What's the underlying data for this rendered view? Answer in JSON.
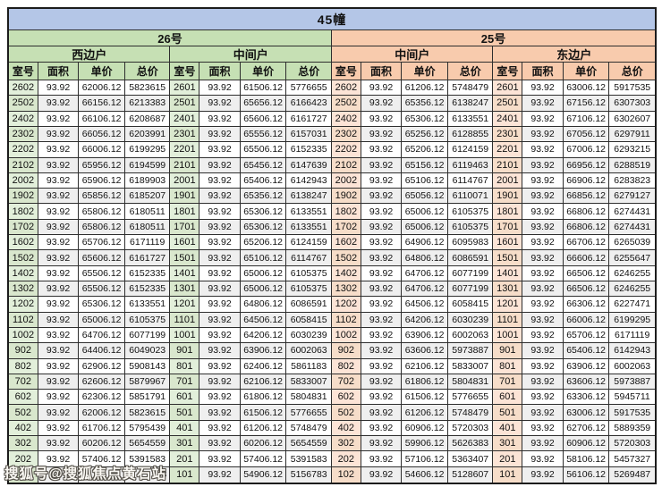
{
  "page": {
    "title": "45幢",
    "watermark": "搜狐号@搜狐焦点黄石站"
  },
  "colors": {
    "header_bar": "#b4c6e7",
    "group_26": "#c6e0b4",
    "group_25": "#f8cbad",
    "room_26": "#e2efda",
    "room_25": "#fce4d6",
    "row_alt": "#efefef",
    "border": "#2e2e2e"
  },
  "columns": [
    "室号",
    "面积",
    "单价",
    "总价"
  ],
  "buildings": [
    {
      "label": "26号",
      "theme": "green"
    },
    {
      "label": "25号",
      "theme": "orange"
    }
  ],
  "groups": [
    {
      "building": "26号",
      "unit": "西边户",
      "theme": "green",
      "rows": [
        [
          "2602",
          "93.92",
          "62006.12",
          "5823615"
        ],
        [
          "2502",
          "93.92",
          "66156.12",
          "6213383"
        ],
        [
          "2402",
          "93.92",
          "66106.12",
          "6208687"
        ],
        [
          "2302",
          "93.92",
          "66056.12",
          "6203991"
        ],
        [
          "2202",
          "93.92",
          "66006.12",
          "6199295"
        ],
        [
          "2102",
          "93.92",
          "65956.12",
          "6194599"
        ],
        [
          "2002",
          "93.92",
          "65906.12",
          "6189903"
        ],
        [
          "1902",
          "93.92",
          "65856.12",
          "6185207"
        ],
        [
          "1802",
          "93.92",
          "65806.12",
          "6180511"
        ],
        [
          "1702",
          "93.92",
          "65806.12",
          "6180511"
        ],
        [
          "1602",
          "93.92",
          "65706.12",
          "6171119"
        ],
        [
          "1502",
          "93.92",
          "65606.12",
          "6161727"
        ],
        [
          "1402",
          "93.92",
          "65506.12",
          "6152335"
        ],
        [
          "1302",
          "93.92",
          "65506.12",
          "6152335"
        ],
        [
          "1202",
          "93.92",
          "65306.12",
          "6133551"
        ],
        [
          "1102",
          "93.92",
          "65006.12",
          "6105375"
        ],
        [
          "1002",
          "93.92",
          "64706.12",
          "6077199"
        ],
        [
          "902",
          "93.92",
          "64406.12",
          "6049023"
        ],
        [
          "802",
          "93.92",
          "62906.12",
          "5908143"
        ],
        [
          "702",
          "93.92",
          "62606.12",
          "5879967"
        ],
        [
          "602",
          "93.92",
          "62306.12",
          "5851791"
        ],
        [
          "502",
          "93.92",
          "62006.12",
          "5823615"
        ],
        [
          "402",
          "93.92",
          "61706.12",
          "5795439"
        ],
        [
          "302",
          "93.92",
          "60206.12",
          "5654559"
        ],
        [
          "202",
          "93.92",
          "57406.12",
          "5391583"
        ],
        [
          "",
          "",
          "",
          "743"
        ]
      ]
    },
    {
      "building": "26号",
      "unit": "中间户",
      "theme": "green",
      "rows": [
        [
          "2601",
          "93.92",
          "61506.12",
          "5776655"
        ],
        [
          "2501",
          "93.92",
          "65656.12",
          "6166423"
        ],
        [
          "2401",
          "93.92",
          "65606.12",
          "6161727"
        ],
        [
          "2301",
          "93.92",
          "65556.12",
          "6157031"
        ],
        [
          "2201",
          "93.92",
          "65506.12",
          "6152335"
        ],
        [
          "2101",
          "93.92",
          "65456.12",
          "6147639"
        ],
        [
          "2001",
          "93.92",
          "65406.12",
          "6142943"
        ],
        [
          "1901",
          "93.92",
          "65356.12",
          "6138247"
        ],
        [
          "1801",
          "93.92",
          "65306.12",
          "6133551"
        ],
        [
          "1701",
          "93.92",
          "65306.12",
          "6133551"
        ],
        [
          "1601",
          "93.92",
          "65206.12",
          "6124159"
        ],
        [
          "1501",
          "93.92",
          "65106.12",
          "6114767"
        ],
        [
          "1401",
          "93.92",
          "65006.12",
          "6105375"
        ],
        [
          "1301",
          "93.92",
          "65006.12",
          "6105375"
        ],
        [
          "1201",
          "93.92",
          "64806.12",
          "6086591"
        ],
        [
          "1101",
          "93.92",
          "64506.12",
          "6058415"
        ],
        [
          "1001",
          "93.92",
          "64206.12",
          "6030239"
        ],
        [
          "901",
          "93.92",
          "63906.12",
          "6002063"
        ],
        [
          "801",
          "93.92",
          "62406.12",
          "5861183"
        ],
        [
          "701",
          "93.92",
          "62106.12",
          "5833007"
        ],
        [
          "601",
          "93.92",
          "61806.12",
          "5804831"
        ],
        [
          "501",
          "93.92",
          "61506.12",
          "5776655"
        ],
        [
          "401",
          "93.92",
          "61206.12",
          "5748479"
        ],
        [
          "301",
          "93.92",
          "60206.12",
          "5654559"
        ],
        [
          "201",
          "93.92",
          "57406.12",
          "5391583"
        ],
        [
          "101",
          "93.92",
          "54906.12",
          "5156783"
        ]
      ]
    },
    {
      "building": "25号",
      "unit": "中间户",
      "theme": "orange",
      "rows": [
        [
          "2602",
          "93.92",
          "61206.12",
          "5748479"
        ],
        [
          "2502",
          "93.92",
          "65356.12",
          "6138247"
        ],
        [
          "2402",
          "93.92",
          "65306.12",
          "6133551"
        ],
        [
          "2302",
          "93.92",
          "65256.12",
          "6128855"
        ],
        [
          "2202",
          "93.92",
          "65206.12",
          "6124159"
        ],
        [
          "2102",
          "93.92",
          "65156.12",
          "6119463"
        ],
        [
          "2002",
          "93.92",
          "65106.12",
          "6114767"
        ],
        [
          "1902",
          "93.92",
          "65056.12",
          "6110071"
        ],
        [
          "1802",
          "93.92",
          "65006.12",
          "6105375"
        ],
        [
          "1702",
          "93.92",
          "65006.12",
          "6105375"
        ],
        [
          "1602",
          "93.92",
          "64906.12",
          "6095983"
        ],
        [
          "1502",
          "93.92",
          "64806.12",
          "6086591"
        ],
        [
          "1402",
          "93.92",
          "64706.12",
          "6077199"
        ],
        [
          "1302",
          "93.92",
          "64706.12",
          "6077199"
        ],
        [
          "1202",
          "93.92",
          "64506.12",
          "6058415"
        ],
        [
          "1102",
          "93.92",
          "64206.12",
          "6030239"
        ],
        [
          "1002",
          "93.92",
          "63906.12",
          "6002063"
        ],
        [
          "902",
          "93.92",
          "63606.12",
          "5973887"
        ],
        [
          "802",
          "93.92",
          "62106.12",
          "5833007"
        ],
        [
          "702",
          "93.92",
          "61806.12",
          "5804831"
        ],
        [
          "602",
          "93.92",
          "61506.12",
          "5776655"
        ],
        [
          "502",
          "93.92",
          "61206.12",
          "5748479"
        ],
        [
          "402",
          "93.92",
          "60906.12",
          "5720303"
        ],
        [
          "302",
          "93.92",
          "59906.12",
          "5626383"
        ],
        [
          "202",
          "93.92",
          "57106.12",
          "5363407"
        ],
        [
          "102",
          "93.92",
          "54606.12",
          "5128607"
        ]
      ]
    },
    {
      "building": "25号",
      "unit": "东边户",
      "theme": "orange",
      "rows": [
        [
          "2601",
          "93.92",
          "63006.12",
          "5917535"
        ],
        [
          "2501",
          "93.92",
          "67156.12",
          "6307303"
        ],
        [
          "2401",
          "93.92",
          "67106.12",
          "6302607"
        ],
        [
          "2301",
          "93.92",
          "67056.12",
          "6297911"
        ],
        [
          "2201",
          "93.92",
          "67006.12",
          "6293215"
        ],
        [
          "2101",
          "93.92",
          "66956.12",
          "6288519"
        ],
        [
          "2001",
          "93.92",
          "66906.12",
          "6283823"
        ],
        [
          "1901",
          "93.92",
          "66856.12",
          "6279127"
        ],
        [
          "1801",
          "93.92",
          "66806.12",
          "6274431"
        ],
        [
          "1701",
          "93.92",
          "66806.12",
          "6274431"
        ],
        [
          "1601",
          "93.92",
          "66706.12",
          "6265039"
        ],
        [
          "1501",
          "93.92",
          "66606.12",
          "6255647"
        ],
        [
          "1401",
          "93.92",
          "66506.12",
          "6246255"
        ],
        [
          "1301",
          "93.92",
          "66506.12",
          "6246255"
        ],
        [
          "1201",
          "93.92",
          "66306.12",
          "6227471"
        ],
        [
          "1101",
          "93.92",
          "66006.12",
          "6199295"
        ],
        [
          "1001",
          "93.92",
          "65706.12",
          "6171119"
        ],
        [
          "901",
          "93.92",
          "65406.12",
          "6142943"
        ],
        [
          "801",
          "93.92",
          "63906.12",
          "6002063"
        ],
        [
          "701",
          "93.92",
          "63606.12",
          "5973887"
        ],
        [
          "601",
          "93.92",
          "63306.12",
          "5945711"
        ],
        [
          "501",
          "93.92",
          "63006.12",
          "5917535"
        ],
        [
          "401",
          "93.92",
          "62706.12",
          "5889359"
        ],
        [
          "301",
          "93.92",
          "60906.12",
          "5720303"
        ],
        [
          "201",
          "93.92",
          "58106.12",
          "5457327"
        ],
        [
          "101",
          "93.92",
          "56106.12",
          "5269487"
        ]
      ]
    }
  ]
}
